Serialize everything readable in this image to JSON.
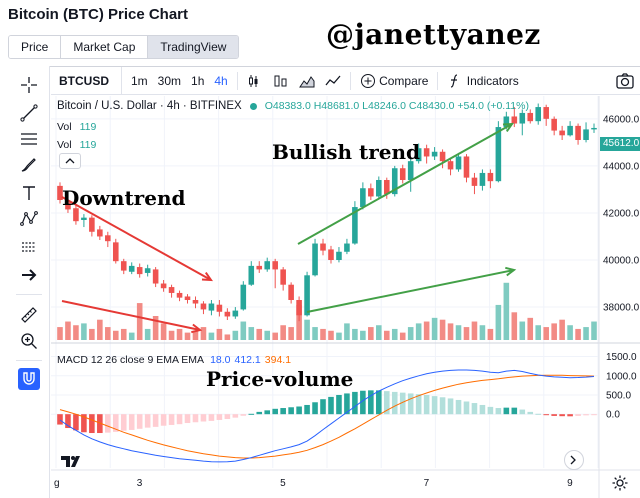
{
  "page": {
    "title": "Bitcoin (BTC) Price Chart",
    "watermark": "@janettyanez"
  },
  "tabs": [
    {
      "label": "Price",
      "active": false
    },
    {
      "label": "Market Cap",
      "active": false
    },
    {
      "label": "TradingView",
      "active": true
    }
  ],
  "toolbar": {
    "symbol": "BTCUSD",
    "timeframes": [
      "1m",
      "30m",
      "1h",
      "4h"
    ],
    "active_timeframe": "4h",
    "compare_label": "Compare",
    "indicators_label": "Indicators"
  },
  "legend": {
    "name": "Bitcoin / U.S. Dollar · 4h · BITFINEX",
    "ohlc": "O48383.0  H48681.0  L48246.0  C48430.0  +54.0 (+0.11%)",
    "vol1_label": "Vol",
    "vol1_value": "119",
    "vol2_label": "Vol",
    "vol2_value": "119"
  },
  "macd_legend": {
    "label": "MACD 12 26 close 9 EMA EMA",
    "v1": "18.0",
    "v2": "412.1",
    "v3": "394.1"
  },
  "annotations": {
    "downtrend": "Downtrend",
    "bullish": "Bullish trend",
    "price_volume": "Price-volume"
  },
  "last_price": "45612.0",
  "colors": {
    "up": "#26a69a",
    "down": "#ef5350",
    "vol_up": "#7fcbc1",
    "vol_down": "#f28b85",
    "macd_line": "#2962ff",
    "signal_line": "#ff6d00",
    "arrow_red": "#e53935",
    "arrow_green": "#43a047",
    "accent": "#2962ff"
  },
  "chart_data": {
    "type": "candlestick",
    "price_axis": {
      "ticks": [
        38000,
        40000,
        42000,
        44000,
        46000
      ],
      "tick_labels": [
        "38000.0",
        "40000.0",
        "42000.0",
        "44000.0",
        "46000.0"
      ],
      "range": [
        36600,
        46800
      ]
    },
    "macd_axis": {
      "ticks": [
        1500,
        1000,
        500,
        0
      ],
      "tick_labels": [
        "1500.0",
        "1000.0",
        "500.0",
        "0.0"
      ],
      "range": [
        -1400,
        1800
      ]
    },
    "time_axis": {
      "labels": [
        "3",
        "5",
        "7",
        "9"
      ],
      "first_label": "g"
    },
    "candles": [
      {
        "o": 43150,
        "c": 42550,
        "h": 43300,
        "l": 42400
      },
      {
        "o": 42450,
        "c": 42150,
        "h": 42650,
        "l": 42000
      },
      {
        "o": 42200,
        "c": 41650,
        "h": 42350,
        "l": 41500
      },
      {
        "o": 41700,
        "c": 41800,
        "h": 41950,
        "l": 41400
      },
      {
        "o": 41800,
        "c": 41200,
        "h": 41900,
        "l": 41000
      },
      {
        "o": 41300,
        "c": 41000,
        "h": 41450,
        "l": 40850
      },
      {
        "o": 41050,
        "c": 40800,
        "h": 41200,
        "l": 40550
      },
      {
        "o": 40750,
        "c": 39950,
        "h": 40900,
        "l": 39850
      },
      {
        "o": 39950,
        "c": 39550,
        "h": 40050,
        "l": 39400
      },
      {
        "o": 39500,
        "c": 39750,
        "h": 39900,
        "l": 39400
      },
      {
        "o": 39700,
        "c": 39400,
        "h": 39850,
        "l": 39250
      },
      {
        "o": 39450,
        "c": 39650,
        "h": 39800,
        "l": 39300
      },
      {
        "o": 39600,
        "c": 39000,
        "h": 39700,
        "l": 38850
      },
      {
        "o": 39000,
        "c": 38800,
        "h": 39150,
        "l": 38650
      },
      {
        "o": 38850,
        "c": 38600,
        "h": 38950,
        "l": 38400
      },
      {
        "o": 38600,
        "c": 38400,
        "h": 38700,
        "l": 38250
      },
      {
        "o": 38450,
        "c": 38300,
        "h": 38550,
        "l": 38150
      },
      {
        "o": 38300,
        "c": 38150,
        "h": 38450,
        "l": 37950
      },
      {
        "o": 38150,
        "c": 37900,
        "h": 38250,
        "l": 37700
      },
      {
        "o": 37850,
        "c": 38150,
        "h": 38300,
        "l": 37650
      },
      {
        "o": 38100,
        "c": 37800,
        "h": 38300,
        "l": 37600
      },
      {
        "o": 37800,
        "c": 37600,
        "h": 37950,
        "l": 37450
      },
      {
        "o": 37600,
        "c": 37850,
        "h": 38000,
        "l": 37500
      },
      {
        "o": 37900,
        "c": 38950,
        "h": 39100,
        "l": 37850
      },
      {
        "o": 38950,
        "c": 39750,
        "h": 39950,
        "l": 38900
      },
      {
        "o": 39750,
        "c": 39600,
        "h": 39950,
        "l": 39450
      },
      {
        "o": 39600,
        "c": 39950,
        "h": 40100,
        "l": 39500
      },
      {
        "o": 39950,
        "c": 39600,
        "h": 40050,
        "l": 38800
      },
      {
        "o": 39600,
        "c": 38950,
        "h": 39700,
        "l": 38700
      },
      {
        "o": 38950,
        "c": 38300,
        "h": 39050,
        "l": 38150
      },
      {
        "o": 38300,
        "c": 37650,
        "h": 38450,
        "l": 37400
      },
      {
        "o": 37650,
        "c": 39350,
        "h": 39500,
        "l": 37600
      },
      {
        "o": 39350,
        "c": 40700,
        "h": 40900,
        "l": 39300
      },
      {
        "o": 40700,
        "c": 40400,
        "h": 40900,
        "l": 40200
      },
      {
        "o": 40450,
        "c": 40000,
        "h": 40600,
        "l": 39850
      },
      {
        "o": 40000,
        "c": 40350,
        "h": 40550,
        "l": 39900
      },
      {
        "o": 40350,
        "c": 40700,
        "h": 40900,
        "l": 40250
      },
      {
        "o": 40700,
        "c": 42250,
        "h": 42500,
        "l": 40650
      },
      {
        "o": 42250,
        "c": 43050,
        "h": 43300,
        "l": 42150
      },
      {
        "o": 43050,
        "c": 42700,
        "h": 43250,
        "l": 42550
      },
      {
        "o": 42700,
        "c": 43400,
        "h": 43550,
        "l": 42600
      },
      {
        "o": 43400,
        "c": 42800,
        "h": 43500,
        "l": 42600
      },
      {
        "o": 42800,
        "c": 43900,
        "h": 44000,
        "l": 42700
      },
      {
        "o": 43900,
        "c": 43400,
        "h": 44050,
        "l": 43250
      },
      {
        "o": 43400,
        "c": 44200,
        "h": 44350,
        "l": 42900
      },
      {
        "o": 44200,
        "c": 44750,
        "h": 44950,
        "l": 44100
      },
      {
        "o": 44750,
        "c": 44400,
        "h": 44900,
        "l": 44100
      },
      {
        "o": 44400,
        "c": 44600,
        "h": 44800,
        "l": 44250
      },
      {
        "o": 44600,
        "c": 44200,
        "h": 44700,
        "l": 43900
      },
      {
        "o": 44200,
        "c": 43850,
        "h": 44300,
        "l": 43600
      },
      {
        "o": 43850,
        "c": 44400,
        "h": 44550,
        "l": 43750
      },
      {
        "o": 44400,
        "c": 43500,
        "h": 44500,
        "l": 43300
      },
      {
        "o": 43500,
        "c": 43150,
        "h": 43700,
        "l": 42800
      },
      {
        "o": 43150,
        "c": 43700,
        "h": 43850,
        "l": 42950
      },
      {
        "o": 43700,
        "c": 43350,
        "h": 43850,
        "l": 43050
      },
      {
        "o": 43350,
        "c": 45650,
        "h": 45900,
        "l": 43300
      },
      {
        "o": 45650,
        "c": 46100,
        "h": 46300,
        "l": 45550
      },
      {
        "o": 46100,
        "c": 45800,
        "h": 46500,
        "l": 45650
      },
      {
        "o": 45800,
        "c": 46250,
        "h": 46400,
        "l": 45300
      },
      {
        "o": 46250,
        "c": 45900,
        "h": 46400,
        "l": 45800
      },
      {
        "o": 45900,
        "c": 46500,
        "h": 46650,
        "l": 45750
      },
      {
        "o": 46500,
        "c": 46000,
        "h": 46600,
        "l": 45700
      },
      {
        "o": 46000,
        "c": 45500,
        "h": 46100,
        "l": 45300
      },
      {
        "o": 45500,
        "c": 45300,
        "h": 45700,
        "l": 45100
      },
      {
        "o": 45300,
        "c": 45700,
        "h": 45900,
        "l": 45250
      },
      {
        "o": 45700,
        "c": 45100,
        "h": 45800,
        "l": 44900
      },
      {
        "o": 45100,
        "c": 45550,
        "h": 45850,
        "l": 45000
      },
      {
        "o": 45550,
        "c": 45612,
        "h": 45800,
        "l": 45400
      }
    ],
    "volumes": [
      14,
      20,
      16,
      18,
      12,
      22,
      14,
      10,
      12,
      8,
      40,
      12,
      26,
      18,
      10,
      12,
      8,
      10,
      14,
      8,
      12,
      6,
      10,
      20,
      14,
      12,
      10,
      8,
      16,
      14,
      38,
      22,
      14,
      12,
      10,
      8,
      18,
      12,
      10,
      14,
      16,
      10,
      12,
      8,
      14,
      18,
      20,
      24,
      22,
      18,
      16,
      14,
      20,
      16,
      12,
      38,
      62,
      30,
      20,
      24,
      16,
      14,
      18,
      22,
      16,
      12,
      14,
      20
    ],
    "macd_line": [
      -150,
      -300,
      -420,
      -540,
      -640,
      -720,
      -790,
      -850,
      -900,
      -950,
      -990,
      -1030,
      -1070,
      -1100,
      -1130,
      -1160,
      -1180,
      -1200,
      -1220,
      -1235,
      -1240,
      -1235,
      -1220,
      -1180,
      -1130,
      -1070,
      -1010,
      -950,
      -900,
      -850,
      -790,
      -700,
      -560,
      -400,
      -250,
      -100,
      50,
      200,
      350,
      480,
      600,
      700,
      790,
      870,
      940,
      1000,
      1050,
      1090,
      1120,
      1140,
      1150,
      1150,
      1140,
      1120,
      1090,
      1080,
      1120,
      1140,
      1110,
      1060,
      1020,
      990,
      970,
      960,
      950,
      955,
      965,
      980
    ],
    "signal_line": [
      120,
      60,
      0,
      -70,
      -150,
      -230,
      -310,
      -390,
      -470,
      -540,
      -610,
      -680,
      -740,
      -800,
      -850,
      -900,
      -950,
      -990,
      -1030,
      -1060,
      -1090,
      -1110,
      -1130,
      -1140,
      -1140,
      -1130,
      -1110,
      -1090,
      -1060,
      -1030,
      -990,
      -940,
      -870,
      -790,
      -700,
      -600,
      -490,
      -380,
      -260,
      -140,
      -20,
      100,
      210,
      310,
      400,
      480,
      550,
      620,
      680,
      730,
      780,
      820,
      850,
      880,
      900,
      920,
      950,
      970,
      990,
      1000,
      1010,
      1015,
      1015,
      1012,
      1005,
      1000,
      995,
      992
    ],
    "histogram": [
      -270,
      -360,
      -420,
      -470,
      -490,
      -490,
      -480,
      -460,
      -430,
      -410,
      -380,
      -350,
      -330,
      -300,
      -280,
      -260,
      -230,
      -210,
      -190,
      -175,
      -150,
      -125,
      -90,
      -40,
      10,
      60,
      100,
      140,
      160,
      180,
      200,
      240,
      310,
      390,
      450,
      500,
      540,
      580,
      610,
      620,
      620,
      600,
      580,
      560,
      540,
      520,
      500,
      470,
      440,
      410,
      370,
      330,
      290,
      240,
      190,
      160,
      170,
      170,
      120,
      60,
      10,
      -25,
      -45,
      -52,
      -55,
      -45,
      -30,
      -12
    ]
  }
}
